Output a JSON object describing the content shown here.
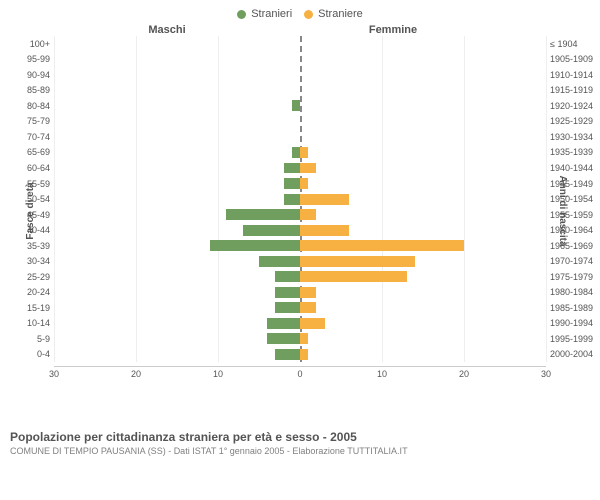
{
  "chart": {
    "type": "population-pyramid",
    "legend": [
      {
        "label": "Stranieri",
        "color": "#6f9e5f"
      },
      {
        "label": "Straniere",
        "color": "#f7b142"
      }
    ],
    "col_left": "Maschi",
    "col_right": "Femmine",
    "y_left_title": "Fasce di età",
    "y_right_title": "Anni di nascita",
    "x_max": 30,
    "x_ticks_left": [
      30,
      20,
      10,
      0
    ],
    "x_ticks_right": [
      0,
      10,
      20,
      30
    ],
    "bar_color_left": "#6f9e5f",
    "bar_color_right": "#f7b142",
    "background_color": "#ffffff",
    "grid_color": "#eeeeee",
    "label_fontsize": 10,
    "tick_fontsize": 9,
    "rows": [
      {
        "age": "100+",
        "year": "≤ 1904",
        "m": 0,
        "f": 0
      },
      {
        "age": "95-99",
        "year": "1905-1909",
        "m": 0,
        "f": 0
      },
      {
        "age": "90-94",
        "year": "1910-1914",
        "m": 0,
        "f": 0
      },
      {
        "age": "85-89",
        "year": "1915-1919",
        "m": 0,
        "f": 0
      },
      {
        "age": "80-84",
        "year": "1920-1924",
        "m": 1,
        "f": 0
      },
      {
        "age": "75-79",
        "year": "1925-1929",
        "m": 0,
        "f": 0
      },
      {
        "age": "70-74",
        "year": "1930-1934",
        "m": 0,
        "f": 0
      },
      {
        "age": "65-69",
        "year": "1935-1939",
        "m": 1,
        "f": 1
      },
      {
        "age": "60-64",
        "year": "1940-1944",
        "m": 2,
        "f": 2
      },
      {
        "age": "55-59",
        "year": "1945-1949",
        "m": 2,
        "f": 1
      },
      {
        "age": "50-54",
        "year": "1950-1954",
        "m": 2,
        "f": 6
      },
      {
        "age": "45-49",
        "year": "1955-1959",
        "m": 9,
        "f": 2
      },
      {
        "age": "40-44",
        "year": "1960-1964",
        "m": 7,
        "f": 6
      },
      {
        "age": "35-39",
        "year": "1965-1969",
        "m": 11,
        "f": 20
      },
      {
        "age": "30-34",
        "year": "1970-1974",
        "m": 5,
        "f": 14
      },
      {
        "age": "25-29",
        "year": "1975-1979",
        "m": 3,
        "f": 13
      },
      {
        "age": "20-24",
        "year": "1980-1984",
        "m": 3,
        "f": 2
      },
      {
        "age": "15-19",
        "year": "1985-1989",
        "m": 3,
        "f": 2
      },
      {
        "age": "10-14",
        "year": "1990-1994",
        "m": 4,
        "f": 3
      },
      {
        "age": "5-9",
        "year": "1995-1999",
        "m": 4,
        "f": 1
      },
      {
        "age": "0-4",
        "year": "2000-2004",
        "m": 3,
        "f": 1
      }
    ],
    "caption_title": "Popolazione per cittadinanza straniera per età e sesso - 2005",
    "caption_sub": "COMUNE DI TEMPIO PAUSANIA (SS) - Dati ISTAT 1° gennaio 2005 - Elaborazione TUTTITALIA.IT"
  }
}
